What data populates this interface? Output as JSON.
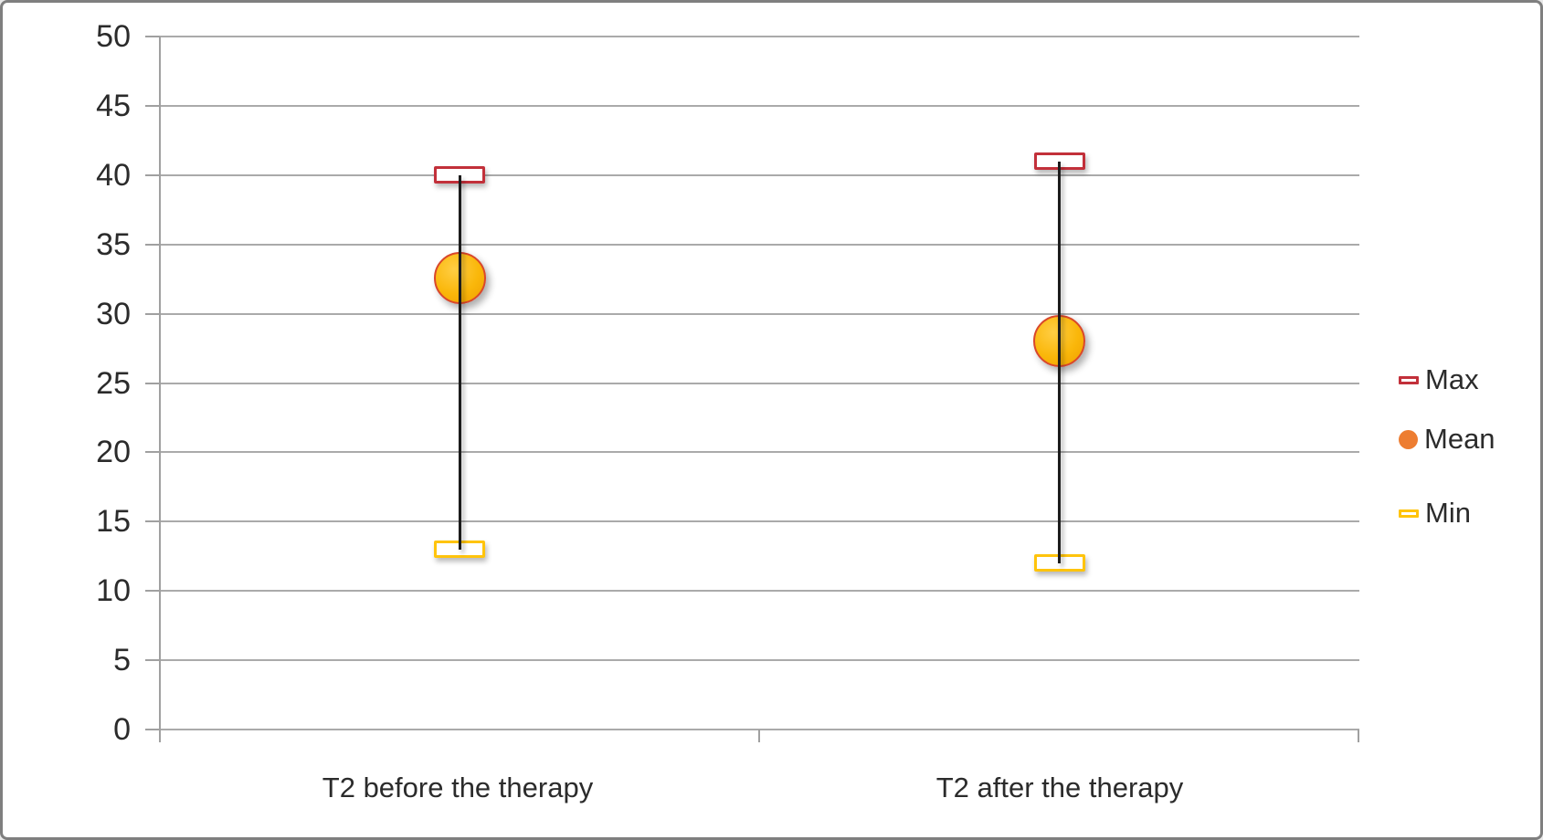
{
  "figure": {
    "background": "#ffffff",
    "border_color": "#7f7f7f"
  },
  "chart_data": {
    "type": "hilo",
    "title": "",
    "xlabel": "",
    "ylabel": "",
    "categories": [
      "T2 before the therapy",
      "T2 after the therapy"
    ],
    "series": [
      {
        "name": "Max",
        "marker": "open-rect",
        "color": "#c2303a",
        "values": [
          40,
          41
        ]
      },
      {
        "name": "Mean",
        "marker": "filled-circle",
        "color": "#f5b210",
        "border_color": "#d9472b",
        "legend_color": "#ed7d31",
        "values": [
          32.6,
          28
        ]
      },
      {
        "name": "Min",
        "marker": "open-rect",
        "color": "#ffc40c",
        "values": [
          13,
          12
        ]
      }
    ],
    "ylim": [
      0,
      50
    ],
    "ytick_step": 5,
    "yticks": [
      0,
      5,
      10,
      15,
      20,
      25,
      30,
      35,
      40,
      45,
      50
    ],
    "grid": true,
    "legend_position": "right",
    "colors": {
      "gridline": "#aaaaaa",
      "axis": "#a0a0a0",
      "text": "#2b2b2b",
      "hilo_line": "#1c1c1c"
    }
  }
}
